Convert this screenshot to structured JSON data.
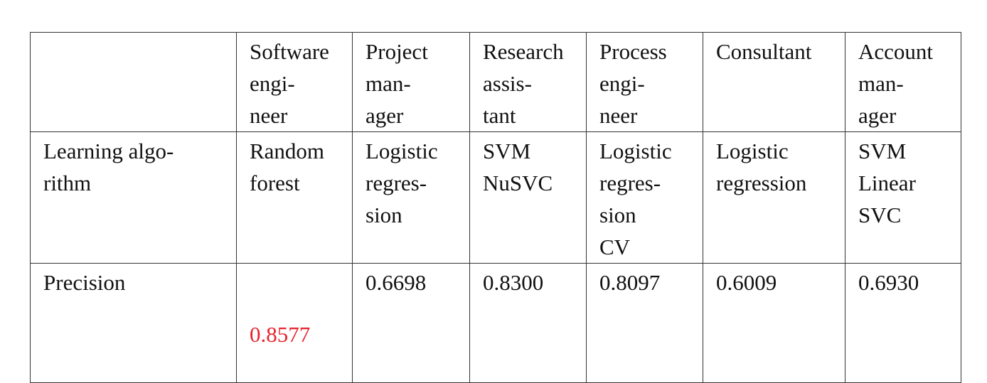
{
  "table": {
    "headers": [
      "",
      "Software\nengi-\nneer",
      "Project\nman-\nager",
      "Research\nassis-\ntant",
      "Process\nengi-\nneer",
      "Consultant",
      "Account\nman-\nager"
    ],
    "rows": [
      {
        "label": "Learning   algo-\nrithm",
        "cells": [
          "Random\nforest",
          "Logistic\nregres-\nsion",
          "SVM\nNuSVC",
          "Logistic\nregres-\nsion\nCV",
          "Logistic\nregression",
          "SVM\nLinear\nSVC"
        ]
      },
      {
        "label": "Precision",
        "cells": [
          "0.8577",
          "0.6698",
          "0.8300",
          "0.8097",
          "0.6009",
          "0.6930"
        ]
      }
    ],
    "highlight_color": "#e8212b"
  }
}
